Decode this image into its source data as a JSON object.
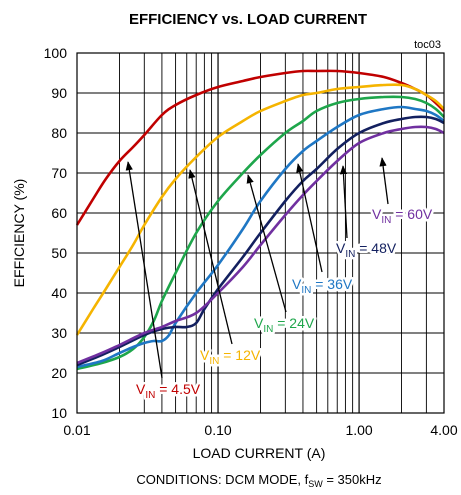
{
  "chart_data": {
    "type": "line",
    "title": "EFFICIENCY vs. LOAD CURRENT",
    "figure_id": "toc03",
    "xlabel": "LOAD CURRENT (A)",
    "ylabel": "EFFICIENCY (%)",
    "x_scale": "log",
    "xlim": [
      0.01,
      4.0
    ],
    "ylim": [
      10,
      100
    ],
    "x_ticks": [
      "0.01",
      "0.10",
      "1.00",
      "4.00"
    ],
    "y_ticks": [
      "10",
      "20",
      "30",
      "40",
      "50",
      "60",
      "70",
      "80",
      "90",
      "100"
    ],
    "grid": true,
    "conditions": {
      "prefix": "CONDITIONS:  DCM MODE, f",
      "sub": "SW",
      "suffix": " = 350kHz"
    },
    "series": [
      {
        "name": "V_IN = 4.5V",
        "label": {
          "base": "V",
          "sub": "IN",
          "rest": " = 4.5V"
        },
        "color": "#c00000",
        "x": [
          0.01,
          0.013,
          0.016,
          0.02,
          0.025,
          0.03,
          0.04,
          0.05,
          0.07,
          0.1,
          0.15,
          0.2,
          0.3,
          0.4,
          0.5,
          0.7,
          1.0,
          1.5,
          2.0,
          2.5,
          3.0,
          3.5,
          4.0
        ],
        "y": [
          57,
          63.5,
          68.5,
          73,
          76.5,
          79.5,
          84.5,
          87,
          89.5,
          91.5,
          93,
          94,
          95,
          95.5,
          95.5,
          95.5,
          95,
          94,
          92.5,
          91,
          89.5,
          87.5,
          85.5
        ]
      },
      {
        "name": "V_IN = 12V",
        "label": {
          "base": "V",
          "sub": "IN",
          "rest": " = 12V"
        },
        "color": "#f5b400",
        "x": [
          0.01,
          0.013,
          0.016,
          0.02,
          0.025,
          0.03,
          0.04,
          0.05,
          0.07,
          0.1,
          0.15,
          0.2,
          0.3,
          0.4,
          0.5,
          0.7,
          1.0,
          1.5,
          2.0,
          2.5,
          3.0,
          3.5,
          4.0
        ],
        "y": [
          29.5,
          36,
          41,
          46.5,
          52,
          57,
          64,
          68.5,
          74,
          79,
          83,
          85.5,
          88,
          89.5,
          90,
          91,
          91.5,
          92,
          92,
          91,
          89.5,
          88,
          86
        ]
      },
      {
        "name": "V_IN = 24V",
        "label": {
          "base": "V",
          "sub": "IN",
          "rest": " = 24V"
        },
        "color": "#1ea64b",
        "x": [
          0.01,
          0.015,
          0.02,
          0.025,
          0.03,
          0.035,
          0.04,
          0.05,
          0.07,
          0.1,
          0.15,
          0.2,
          0.3,
          0.4,
          0.5,
          0.7,
          1.0,
          1.5,
          2.0,
          2.5,
          3.0,
          3.5,
          4.0
        ],
        "y": [
          21,
          22.5,
          24,
          26,
          29,
          33,
          38,
          45,
          55,
          63,
          70,
          74.5,
          80,
          83,
          85.5,
          87.5,
          88.5,
          89,
          89,
          88.5,
          87.5,
          86,
          84
        ]
      },
      {
        "name": "V_IN = 36V",
        "label": {
          "base": "V",
          "sub": "IN",
          "rest": " = 36V"
        },
        "color": "#1f77c4",
        "x": [
          0.01,
          0.015,
          0.02,
          0.025,
          0.03,
          0.035,
          0.04,
          0.045,
          0.05,
          0.07,
          0.1,
          0.15,
          0.2,
          0.3,
          0.4,
          0.5,
          0.7,
          1.0,
          1.5,
          2.0,
          2.5,
          3.0,
          3.5,
          4.0
        ],
        "y": [
          21.5,
          23,
          25,
          26.5,
          27.5,
          28,
          28,
          29.5,
          32.5,
          40,
          47,
          56,
          63,
          71,
          75.5,
          78,
          81.5,
          84.5,
          86,
          86.5,
          86,
          85.5,
          84.5,
          83
        ]
      },
      {
        "name": "V_IN = 48V",
        "label": {
          "base": "V",
          "sub": "IN",
          "rest": " = 48V"
        },
        "color": "#13205f",
        "x": [
          0.01,
          0.015,
          0.02,
          0.03,
          0.04,
          0.05,
          0.06,
          0.07,
          0.08,
          0.1,
          0.15,
          0.2,
          0.3,
          0.4,
          0.5,
          0.7,
          1.0,
          1.5,
          2.0,
          2.5,
          3.0,
          3.5,
          4.0
        ],
        "y": [
          22,
          24.5,
          26.5,
          29.5,
          31,
          31.5,
          31.5,
          32.5,
          36,
          41,
          49,
          55,
          63,
          68,
          71,
          76,
          80,
          82.5,
          83.5,
          84,
          84,
          83.5,
          82.5
        ]
      },
      {
        "name": "V_IN = 60V",
        "label": {
          "base": "V",
          "sub": "IN",
          "rest": " = 60V"
        },
        "color": "#7030a0",
        "x": [
          0.01,
          0.015,
          0.02,
          0.03,
          0.04,
          0.05,
          0.07,
          0.1,
          0.15,
          0.2,
          0.3,
          0.4,
          0.5,
          0.7,
          1.0,
          1.5,
          2.0,
          2.5,
          3.0,
          3.5,
          4.0
        ],
        "y": [
          22.5,
          25,
          27,
          30,
          31.5,
          33,
          35,
          40,
          46.5,
          52,
          59.5,
          64.5,
          68,
          73,
          77.5,
          80,
          81,
          81.5,
          81.5,
          81,
          80
        ]
      }
    ]
  }
}
